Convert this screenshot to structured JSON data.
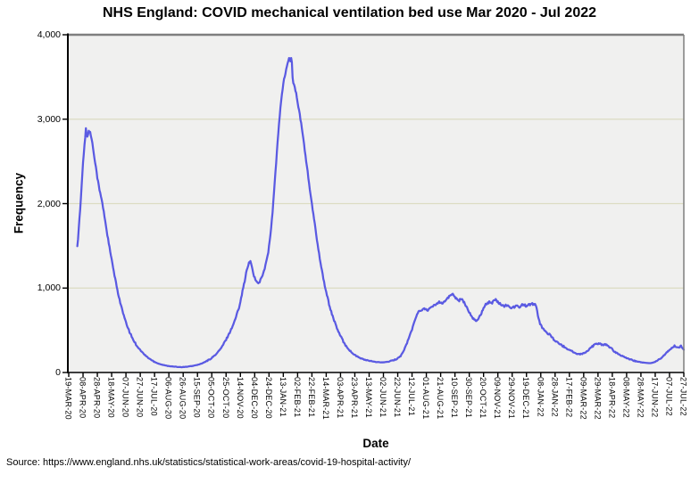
{
  "title": "NHS England: COVID mechanical ventilation bed use Mar 2020 - Jul 2022",
  "source_line": "Source: https://www.england.nhs.uk/statistics/statistical-work-areas/covid-19-hospital-activity/",
  "chart_data": {
    "type": "line",
    "title": "NHS England: COVID mechanical ventilation bed use Mar 2020 - Jul 2022",
    "xlabel": "Date",
    "ylabel": "Frequency",
    "ylim": [
      0,
      4000
    ],
    "grid_on": true,
    "legend": "none",
    "y_ticks": [
      {
        "value": 0,
        "label": "0"
      },
      {
        "value": 1000,
        "label": "1,000"
      },
      {
        "value": 2000,
        "label": "2,000"
      },
      {
        "value": 3000,
        "label": "3,000"
      },
      {
        "value": 4000,
        "label": "4,000"
      }
    ],
    "y_gridlines": [
      1000,
      2000,
      3000
    ],
    "x_day_zero": "19-MAR-20",
    "x_range_days": [
      0,
      860
    ],
    "x_tick_interval_days": 20,
    "x_tick_labels": [
      "19-MAR-20",
      "08-APR-20",
      "28-APR-20",
      "18-MAY-20",
      "07-JUN-20",
      "27-JUN-20",
      "17-JUL-20",
      "06-AUG-20",
      "26-AUG-20",
      "15-SEP-20",
      "05-OCT-20",
      "25-OCT-20",
      "14-NOV-20",
      "04-DEC-20",
      "24-DEC-20",
      "13-JAN-21",
      "02-FEB-21",
      "22-FEB-21",
      "14-MAR-21",
      "03-APR-21",
      "23-APR-21",
      "13-MAY-21",
      "02-JUN-21",
      "22-JUN-21",
      "12-JUL-21",
      "01-AUG-21",
      "21-AUG-21",
      "10-SEP-21",
      "30-SEP-21",
      "20-OCT-21",
      "09-NOV-21",
      "29-NOV-21",
      "19-DEC-21",
      "08-JAN-22",
      "28-JAN-22",
      "17-FEB-22",
      "09-MAR-22",
      "29-MAR-22",
      "18-APR-22",
      "08-MAY-22",
      "28-MAY-22",
      "17-JUN-22",
      "07-JUL-22",
      "27-JUL-22"
    ],
    "line_color": "#5a5ae2",
    "plot_bg": "#f0f0ef",
    "grid_color": "#dcdcc2",
    "frame_color": "#7f7f7f",
    "axis_color": "#000000",
    "noise_amplitude_hint": "daily jitter up to ~15 at high values",
    "points": [
      [
        12,
        1500
      ],
      [
        13,
        1580
      ],
      [
        14,
        1700
      ],
      [
        16,
        1930
      ],
      [
        18,
        2200
      ],
      [
        20,
        2480
      ],
      [
        22,
        2700
      ],
      [
        24,
        2880
      ],
      [
        25,
        2820
      ],
      [
        26,
        2790
      ],
      [
        28,
        2865
      ],
      [
        30,
        2840
      ],
      [
        32,
        2770
      ],
      [
        34,
        2660
      ],
      [
        37,
        2490
      ],
      [
        40,
        2310
      ],
      [
        43,
        2160
      ],
      [
        46,
        2050
      ],
      [
        50,
        1850
      ],
      [
        54,
        1630
      ],
      [
        58,
        1430
      ],
      [
        62,
        1240
      ],
      [
        66,
        1060
      ],
      [
        70,
        900
      ],
      [
        75,
        730
      ],
      [
        80,
        590
      ],
      [
        85,
        480
      ],
      [
        90,
        390
      ],
      [
        95,
        320
      ],
      [
        100,
        265
      ],
      [
        106,
        210
      ],
      [
        112,
        168
      ],
      [
        118,
        135
      ],
      [
        124,
        110
      ],
      [
        130,
        93
      ],
      [
        137,
        80
      ],
      [
        144,
        72
      ],
      [
        151,
        67
      ],
      [
        158,
        64
      ],
      [
        165,
        68
      ],
      [
        172,
        76
      ],
      [
        179,
        88
      ],
      [
        186,
        106
      ],
      [
        193,
        135
      ],
      [
        200,
        172
      ],
      [
        207,
        225
      ],
      [
        214,
        300
      ],
      [
        220,
        390
      ],
      [
        226,
        490
      ],
      [
        232,
        610
      ],
      [
        238,
        770
      ],
      [
        242,
        925
      ],
      [
        246,
        1085
      ],
      [
        249,
        1215
      ],
      [
        252,
        1295
      ],
      [
        254,
        1310
      ],
      [
        256,
        1260
      ],
      [
        258,
        1175
      ],
      [
        261,
        1095
      ],
      [
        264,
        1060
      ],
      [
        267,
        1075
      ],
      [
        270,
        1140
      ],
      [
        273,
        1200
      ],
      [
        276,
        1300
      ],
      [
        279,
        1430
      ],
      [
        282,
        1620
      ],
      [
        285,
        1900
      ],
      [
        288,
        2250
      ],
      [
        291,
        2600
      ],
      [
        294,
        2950
      ],
      [
        297,
        3230
      ],
      [
        300,
        3420
      ],
      [
        303,
        3550
      ],
      [
        306,
        3660
      ],
      [
        308,
        3710
      ],
      [
        309,
        3730
      ],
      [
        310,
        3690
      ],
      [
        311,
        3715
      ],
      [
        312,
        3680
      ],
      [
        313,
        3500
      ],
      [
        314,
        3420
      ],
      [
        316,
        3385
      ],
      [
        318,
        3300
      ],
      [
        321,
        3150
      ],
      [
        324,
        3000
      ],
      [
        327,
        2830
      ],
      [
        330,
        2640
      ],
      [
        333,
        2440
      ],
      [
        336,
        2240
      ],
      [
        339,
        2050
      ],
      [
        342,
        1870
      ],
      [
        345,
        1700
      ],
      [
        349,
        1460
      ],
      [
        353,
        1255
      ],
      [
        357,
        1070
      ],
      [
        361,
        915
      ],
      [
        365,
        775
      ],
      [
        370,
        640
      ],
      [
        375,
        525
      ],
      [
        380,
        430
      ],
      [
        386,
        335
      ],
      [
        392,
        268
      ],
      [
        398,
        218
      ],
      [
        404,
        185
      ],
      [
        411,
        158
      ],
      [
        418,
        142
      ],
      [
        425,
        130
      ],
      [
        432,
        122
      ],
      [
        439,
        120
      ],
      [
        446,
        126
      ],
      [
        452,
        138
      ],
      [
        458,
        158
      ],
      [
        464,
        195
      ],
      [
        468,
        250
      ],
      [
        472,
        330
      ],
      [
        476,
        420
      ],
      [
        480,
        510
      ],
      [
        484,
        620
      ],
      [
        487,
        700
      ],
      [
        490,
        720
      ],
      [
        494,
        745
      ],
      [
        498,
        755
      ],
      [
        502,
        742
      ],
      [
        506,
        760
      ],
      [
        510,
        790
      ],
      [
        514,
        812
      ],
      [
        518,
        840
      ],
      [
        522,
        822
      ],
      [
        526,
        848
      ],
      [
        530,
        882
      ],
      [
        534,
        915
      ],
      [
        537,
        930
      ],
      [
        540,
        898
      ],
      [
        543,
        868
      ],
      [
        546,
        855
      ],
      [
        549,
        872
      ],
      [
        552,
        838
      ],
      [
        555,
        798
      ],
      [
        558,
        752
      ],
      [
        561,
        700
      ],
      [
        564,
        655
      ],
      [
        567,
        622
      ],
      [
        570,
        615
      ],
      [
        573,
        640
      ],
      [
        576,
        690
      ],
      [
        579,
        742
      ],
      [
        582,
        800
      ],
      [
        585,
        820
      ],
      [
        588,
        836
      ],
      [
        591,
        818
      ],
      [
        594,
        850
      ],
      [
        597,
        862
      ],
      [
        600,
        840
      ],
      [
        603,
        812
      ],
      [
        606,
        800
      ],
      [
        609,
        782
      ],
      [
        612,
        800
      ],
      [
        615,
        790
      ],
      [
        618,
        772
      ],
      [
        621,
        768
      ],
      [
        624,
        780
      ],
      [
        627,
        792
      ],
      [
        630,
        780
      ],
      [
        633,
        796
      ],
      [
        636,
        806
      ],
      [
        639,
        790
      ],
      [
        642,
        800
      ],
      [
        645,
        806
      ],
      [
        648,
        812
      ],
      [
        651,
        806
      ],
      [
        653,
        796
      ],
      [
        655,
        720
      ],
      [
        657,
        630
      ],
      [
        659,
        580
      ],
      [
        662,
        530
      ],
      [
        666,
        492
      ],
      [
        670,
        462
      ],
      [
        674,
        440
      ],
      [
        678,
        392
      ],
      [
        682,
        362
      ],
      [
        686,
        340
      ],
      [
        690,
        320
      ],
      [
        694,
        296
      ],
      [
        698,
        276
      ],
      [
        702,
        262
      ],
      [
        706,
        240
      ],
      [
        710,
        226
      ],
      [
        714,
        216
      ],
      [
        718,
        222
      ],
      [
        722,
        236
      ],
      [
        726,
        262
      ],
      [
        730,
        292
      ],
      [
        734,
        322
      ],
      [
        738,
        345
      ],
      [
        742,
        340
      ],
      [
        746,
        330
      ],
      [
        750,
        336
      ],
      [
        753,
        316
      ],
      [
        756,
        300
      ],
      [
        759,
        290
      ],
      [
        762,
        252
      ],
      [
        765,
        236
      ],
      [
        768,
        222
      ],
      [
        772,
        202
      ],
      [
        776,
        190
      ],
      [
        780,
        172
      ],
      [
        784,
        158
      ],
      [
        788,
        148
      ],
      [
        792,
        136
      ],
      [
        796,
        128
      ],
      [
        800,
        122
      ],
      [
        804,
        116
      ],
      [
        808,
        112
      ],
      [
        812,
        110
      ],
      [
        816,
        116
      ],
      [
        820,
        126
      ],
      [
        824,
        146
      ],
      [
        828,
        170
      ],
      [
        832,
        200
      ],
      [
        836,
        236
      ],
      [
        840,
        268
      ],
      [
        844,
        296
      ],
      [
        847,
        316
      ],
      [
        850,
        300
      ],
      [
        853,
        290
      ],
      [
        856,
        310
      ],
      [
        858,
        286
      ],
      [
        860,
        270
      ]
    ]
  }
}
